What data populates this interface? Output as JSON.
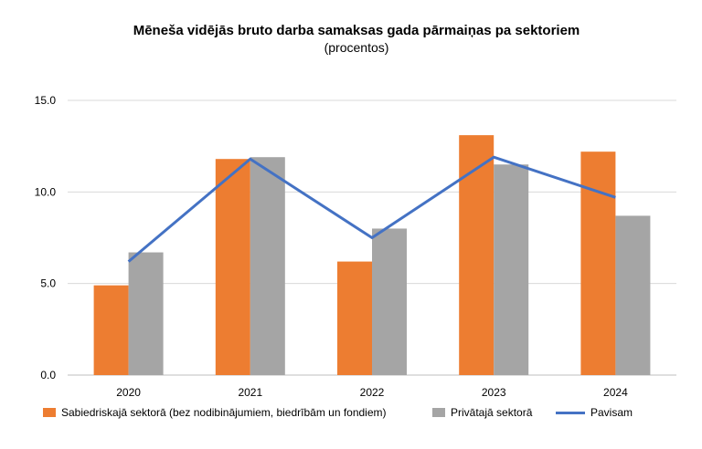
{
  "chart_data": {
    "type": "bar",
    "title": "Mēneša vidējās bruto darba samaksas gada pārmaiņas pa sektoriem",
    "subtitle": "(procentos)",
    "categories": [
      "2020",
      "2021",
      "2022",
      "2023",
      "2024"
    ],
    "series": [
      {
        "name": "Sabiedriskajā sektorā (bez nodibinājumiem, biedrībām un fondiem)",
        "kind": "bar",
        "color": "#ED7D31",
        "values": [
          4.9,
          11.8,
          6.2,
          13.1,
          12.2
        ]
      },
      {
        "name": "Privātajā sektorā",
        "kind": "bar",
        "color": "#A5A5A5",
        "values": [
          6.7,
          11.9,
          8.0,
          11.5,
          8.7
        ]
      },
      {
        "name": "Pavisam",
        "kind": "line",
        "color": "#4472C4",
        "values": [
          6.2,
          11.8,
          7.5,
          11.9,
          9.7
        ]
      }
    ],
    "y_ticks": [
      "0.0",
      "5.0",
      "10.0",
      "15.0"
    ],
    "ylim": [
      0,
      15
    ],
    "grid": true,
    "legend_position": "bottom"
  }
}
